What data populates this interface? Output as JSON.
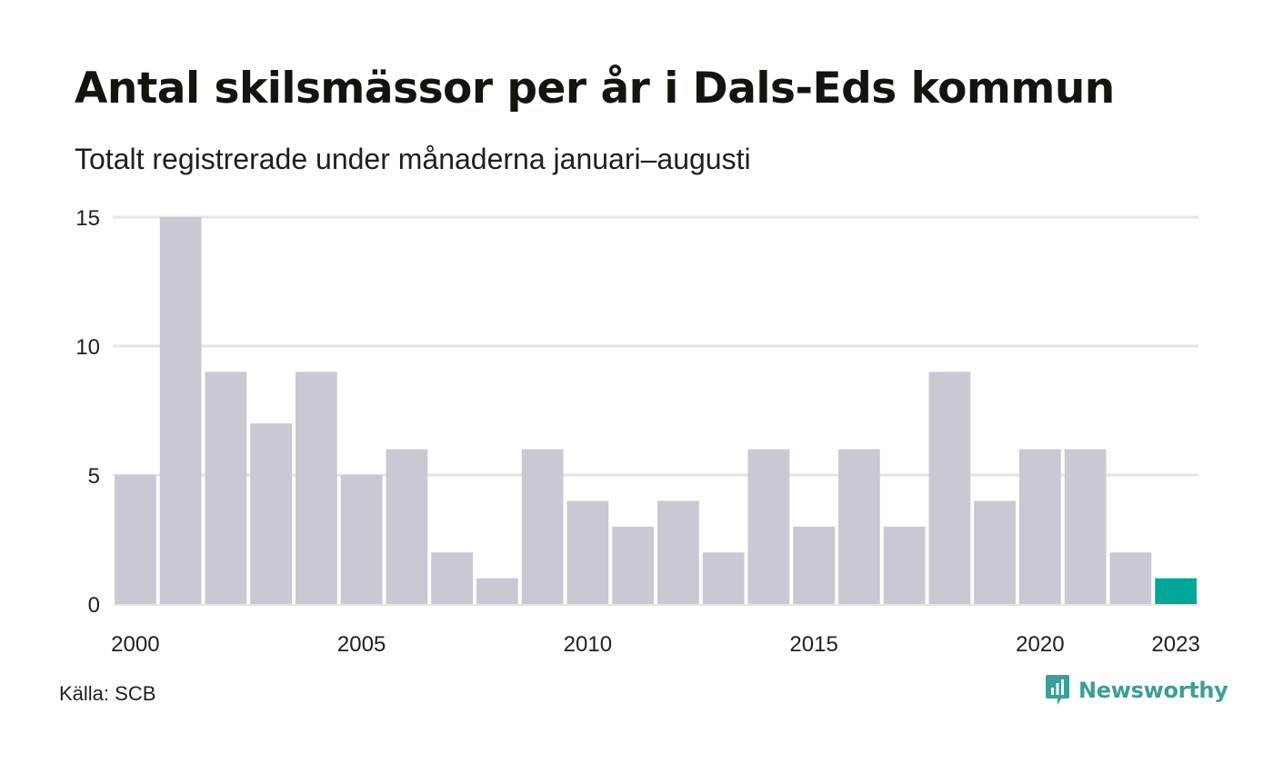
{
  "title": "Antal skilsmässor per år i Dals-Eds kommun",
  "subtitle": "Totalt registrerade under månaderna januari–augusti",
  "source": "Källa: SCB",
  "brand": {
    "name": "Newsworthy",
    "icon": "newsworthy-logo-icon",
    "color": "#3d9d98"
  },
  "colors": {
    "bar": "#c9c8d3",
    "highlight": "#00a796",
    "grid": "#e5e5e5"
  },
  "chart_data": {
    "type": "bar",
    "categories": [
      "2000",
      "2001",
      "2002",
      "2003",
      "2004",
      "2005",
      "2006",
      "2007",
      "2008",
      "2009",
      "2010",
      "2011",
      "2012",
      "2013",
      "2014",
      "2015",
      "2016",
      "2017",
      "2018",
      "2019",
      "2020",
      "2021",
      "2022",
      "2023"
    ],
    "values": [
      5,
      15,
      9,
      7,
      9,
      5,
      6,
      2,
      1,
      6,
      4,
      3,
      4,
      2,
      6,
      3,
      6,
      3,
      9,
      4,
      6,
      6,
      2,
      1
    ],
    "highlight_category": "2023",
    "x_tick_labels": [
      "2000",
      "2005",
      "2010",
      "2015",
      "2020",
      "2023"
    ],
    "y_ticks": [
      0,
      5,
      10,
      15
    ],
    "ylim": [
      0,
      15
    ],
    "grid": true,
    "legend": "none"
  }
}
